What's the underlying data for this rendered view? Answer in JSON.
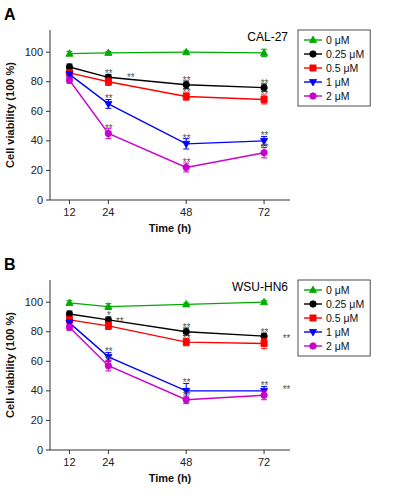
{
  "chart_data": [
    {
      "type": "line",
      "title": "CAL-27",
      "panel_label": "A",
      "xlabel": "Time (h)",
      "ylabel": "Cell viability (100 %)",
      "x": [
        12,
        24,
        48,
        72
      ],
      "xlim": [
        6,
        80
      ],
      "xticks": [
        12,
        24,
        48,
        72
      ],
      "ylim": [
        0,
        115
      ],
      "yticks": [
        0,
        20,
        40,
        60,
        80,
        100
      ],
      "grid": false,
      "legend": "right",
      "series": [
        {
          "name": "0 μM",
          "color": "#00AA00",
          "marker": "triangle-up",
          "values": [
            99,
            99.5,
            100,
            99.5
          ],
          "errors": [
            1.5,
            1.0,
            1.0,
            2.5
          ]
        },
        {
          "name": "0.25 μM",
          "color": "#000000",
          "marker": "circle",
          "values": [
            90,
            83,
            78,
            76
          ],
          "errors": [
            2.0,
            2.0,
            2.5,
            2.5
          ]
        },
        {
          "name": "0.5 μM",
          "color": "#FF0000",
          "marker": "square",
          "values": [
            86,
            80,
            70,
            68
          ],
          "errors": [
            2.0,
            2.5,
            2.5,
            3.0
          ]
        },
        {
          "name": "1 μM",
          "color": "#0000FF",
          "marker": "triangle-down",
          "values": [
            85,
            65,
            38,
            40
          ],
          "errors": [
            2.0,
            3.0,
            3.5,
            3.0
          ]
        },
        {
          "name": "2 μM",
          "color": "#CC00CC",
          "marker": "circle",
          "values": [
            81,
            45,
            22,
            32
          ],
          "errors": [
            2.0,
            3.5,
            3.0,
            3.5
          ]
        }
      ],
      "annotations": [
        {
          "x": 24,
          "y": 86,
          "text": "**"
        },
        {
          "x": 24,
          "y": 83,
          "text": "**"
        },
        {
          "x": 24,
          "y": 69,
          "text": "**"
        },
        {
          "x": 24,
          "y": 49,
          "text": "**"
        },
        {
          "x": 48,
          "y": 81,
          "text": "**"
        },
        {
          "x": 48,
          "y": 73,
          "text": "**"
        },
        {
          "x": 48,
          "y": 42,
          "text": "**"
        },
        {
          "x": 48,
          "y": 26,
          "text": "**"
        },
        {
          "x": 72,
          "y": 79,
          "text": "**"
        },
        {
          "x": 72,
          "y": 72,
          "text": "**"
        },
        {
          "x": 72,
          "y": 44,
          "text": "**"
        },
        {
          "x": 72,
          "y": 36,
          "text": "**"
        }
      ]
    },
    {
      "type": "line",
      "title": "WSU-HN6",
      "panel_label": "B",
      "xlabel": "Time (h)",
      "ylabel": "Cell viability (100 %)",
      "x": [
        12,
        24,
        48,
        72
      ],
      "xlim": [
        6,
        80
      ],
      "xticks": [
        12,
        24,
        48,
        72
      ],
      "ylim": [
        0,
        115
      ],
      "yticks": [
        0,
        20,
        40,
        60,
        80,
        100
      ],
      "grid": false,
      "legend": "right",
      "series": [
        {
          "name": "0 μM",
          "color": "#00AA00",
          "marker": "triangle-up",
          "values": [
            99.5,
            97,
            98.5,
            100
          ],
          "errors": [
            1.5,
            2.0,
            1.0,
            1.0
          ]
        },
        {
          "name": "0.25 μM",
          "color": "#000000",
          "marker": "circle",
          "values": [
            92,
            88,
            80,
            77
          ],
          "errors": [
            2.0,
            2.0,
            2.5,
            2.0
          ]
        },
        {
          "name": "0.5 μM",
          "color": "#FF0000",
          "marker": "square",
          "values": [
            88,
            84,
            73,
            72
          ],
          "errors": [
            2.0,
            2.5,
            2.5,
            3.5
          ]
        },
        {
          "name": "1 μM",
          "color": "#0000FF",
          "marker": "triangle-down",
          "values": [
            86,
            63,
            40,
            40
          ],
          "errors": [
            2.0,
            3.0,
            5.0,
            3.0
          ]
        },
        {
          "name": "2 μM",
          "color": "#CC00CC",
          "marker": "circle",
          "values": [
            83,
            57,
            34,
            37
          ],
          "errors": [
            2.0,
            3.5,
            2.5,
            3.0
          ]
        }
      ],
      "annotations": [
        {
          "x": 24,
          "y": 91,
          "text": "*"
        },
        {
          "x": 24,
          "y": 87,
          "text": "**"
        },
        {
          "x": 24,
          "y": 67,
          "text": "**"
        },
        {
          "x": 24,
          "y": 61,
          "text": "**"
        },
        {
          "x": 48,
          "y": 83,
          "text": "**"
        },
        {
          "x": 48,
          "y": 76,
          "text": "**"
        },
        {
          "x": 48,
          "y": 46,
          "text": "**"
        },
        {
          "x": 48,
          "y": 37,
          "text": "**"
        },
        {
          "x": 72,
          "y": 80,
          "text": "**"
        },
        {
          "x": 72,
          "y": 76,
          "text": "**"
        },
        {
          "x": 72,
          "y": 44,
          "text": "**"
        },
        {
          "x": 72,
          "y": 41,
          "text": "**"
        }
      ]
    }
  ]
}
